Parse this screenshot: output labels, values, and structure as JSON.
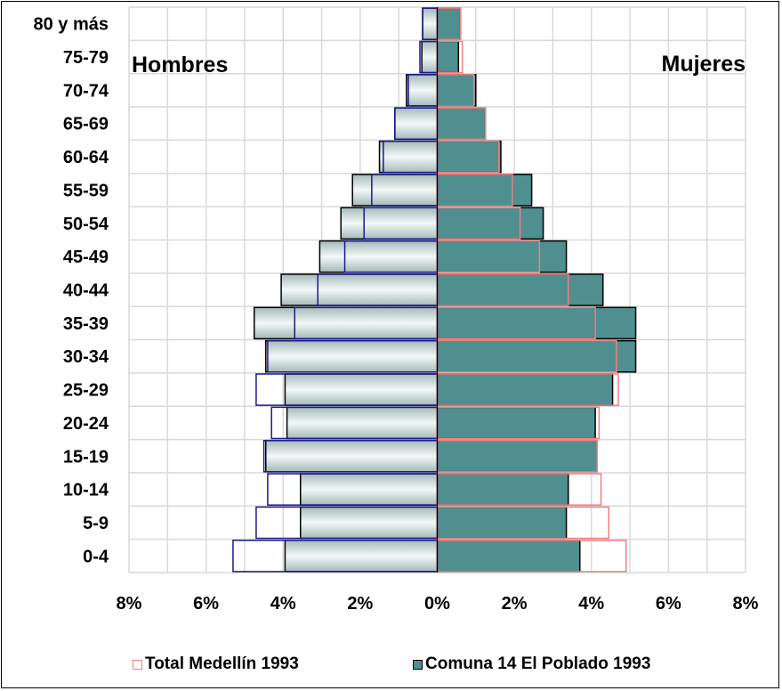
{
  "chart_data": {
    "type": "population-pyramid",
    "categories": [
      "0-4",
      "5-9",
      "10-14",
      "15-19",
      "20-24",
      "25-29",
      "30-34",
      "35-39",
      "40-44",
      "45-49",
      "50-54",
      "55-59",
      "60-64",
      "65-69",
      "70-74",
      "75-79",
      "80 y más"
    ],
    "left_label": "Hombres",
    "right_label": "Mujeres",
    "xlim": [
      -8,
      8
    ],
    "x_ticks": [
      "8%",
      "6%",
      "4%",
      "2%",
      "0%",
      "2%",
      "4%",
      "6%",
      "8%"
    ],
    "grid": true,
    "legend_position": "bottom",
    "series": [
      {
        "name": "Total Medellín 1993",
        "style": "outline",
        "color_male": "#1a1a8c",
        "color_female": "#f08080",
        "men": [
          5.3,
          4.7,
          4.4,
          4.5,
          4.3,
          4.7,
          4.4,
          3.7,
          3.1,
          2.4,
          1.9,
          1.7,
          1.4,
          1.1,
          0.75,
          0.45,
          0.38
        ],
        "women": [
          4.9,
          4.45,
          4.25,
          4.15,
          4.2,
          4.7,
          4.65,
          4.1,
          3.4,
          2.65,
          2.15,
          1.95,
          1.6,
          1.25,
          0.95,
          0.65,
          0.6
        ]
      },
      {
        "name": "Comuna 14 El Poblado 1993",
        "style": "filled",
        "fill_male_edge": "#aabcbc",
        "fill_male_mid": "#eef6f6",
        "fill_female": "#4f8f8f",
        "men": [
          3.95,
          3.55,
          3.55,
          4.45,
          3.9,
          3.95,
          4.45,
          4.75,
          4.05,
          3.05,
          2.5,
          2.2,
          1.5,
          1.1,
          0.8,
          0.4,
          0.38
        ],
        "women": [
          3.7,
          3.35,
          3.4,
          4.15,
          4.1,
          4.55,
          5.15,
          5.15,
          4.3,
          3.35,
          2.75,
          2.45,
          1.65,
          1.25,
          1.0,
          0.55,
          0.6
        ]
      }
    ]
  }
}
